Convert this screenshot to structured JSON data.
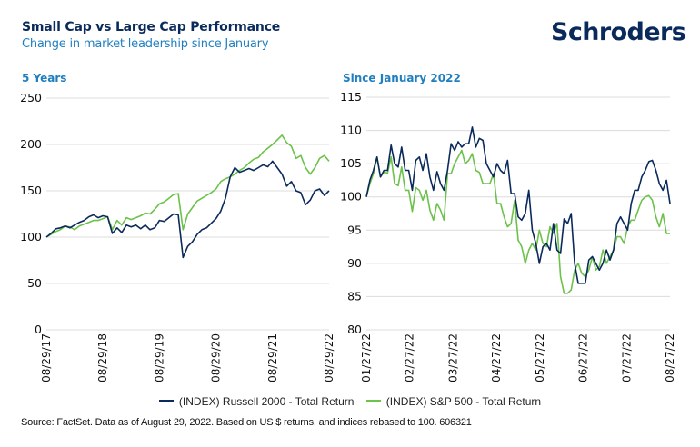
{
  "header": {
    "title": "Small Cap vs Large Cap Performance",
    "subtitle": "Change in market leadership since January",
    "logo": "Schroders"
  },
  "colors": {
    "russell": "#0b2a5c",
    "sp500": "#6cc24a",
    "title": "#0b2a5c",
    "accent": "#1f7fc0"
  },
  "legend": [
    {
      "label": "(INDEX) Russell 2000 - Total Return",
      "color": "#0b2a5c"
    },
    {
      "label": "(INDEX) S&P 500 - Total Return",
      "color": "#6cc24a"
    }
  ],
  "source": "Source: FactSet. Data as of August 29, 2022. Based on US $ returns, and indices rebased to 100. 606321",
  "chart_data": [
    {
      "type": "line",
      "title": "5 Years",
      "xlabel": "",
      "ylabel": "",
      "ylim": [
        0,
        250
      ],
      "yticks": [
        0,
        50,
        100,
        150,
        200,
        250
      ],
      "xticks": [
        "08/29/17",
        "08/29/18",
        "08/29/19",
        "08/29/20",
        "08/29/21",
        "08/29/22"
      ],
      "grid": true,
      "legend": "bottom",
      "x_range": [
        0,
        60
      ],
      "series": [
        {
          "name": "(INDEX) Russell 2000 - Total Return",
          "values": [
            100,
            104,
            109,
            110,
            112,
            110,
            113,
            116,
            118,
            122,
            124,
            121,
            123,
            122,
            104,
            110,
            105,
            113,
            111,
            113,
            109,
            113,
            108,
            110,
            118,
            117,
            121,
            125,
            124,
            78,
            90,
            95,
            103,
            108,
            110,
            115,
            120,
            128,
            142,
            165,
            175,
            170,
            172,
            174,
            172,
            175,
            178,
            176,
            182,
            175,
            168,
            155,
            160,
            150,
            148,
            135,
            140,
            150,
            152,
            145,
            150
          ]
        },
        {
          "name": "(INDEX) S&P 500 - Total Return",
          "values": [
            100,
            103,
            106,
            108,
            112,
            111,
            108,
            112,
            114,
            116,
            118,
            118,
            120,
            122,
            108,
            118,
            113,
            121,
            119,
            121,
            123,
            126,
            125,
            130,
            136,
            138,
            142,
            146,
            147,
            108,
            125,
            132,
            139,
            142,
            145,
            148,
            152,
            160,
            163,
            165,
            168,
            172,
            175,
            180,
            184,
            186,
            192,
            196,
            200,
            205,
            210,
            202,
            198,
            185,
            188,
            175,
            168,
            175,
            185,
            188,
            182
          ]
        }
      ]
    },
    {
      "type": "line",
      "title": "Since January 2022",
      "xlabel": "",
      "ylabel": "",
      "ylim": [
        80,
        115
      ],
      "yticks": [
        80,
        85,
        90,
        95,
        100,
        105,
        110,
        115
      ],
      "xticks": [
        "01/27/22",
        "02/27/22",
        "03/27/22",
        "04/27/22",
        "05/27/22",
        "06/27/22",
        "07/27/22",
        "08/27/22"
      ],
      "grid": true,
      "legend": "bottom",
      "x_range": [
        0,
        100
      ],
      "series": [
        {
          "name": "(INDEX) Russell 2000 - Total Return",
          "values": [
            100,
            102.5,
            104,
            106,
            103,
            104,
            104,
            107.8,
            105,
            104.5,
            107.5,
            104,
            104,
            101,
            105.5,
            106,
            104,
            106.5,
            103,
            101,
            103.8,
            102,
            101,
            104,
            108,
            107,
            108.3,
            107.5,
            108,
            108,
            110.5,
            107.5,
            108.8,
            108.5,
            105,
            104,
            103,
            105,
            104,
            103.5,
            105.5,
            100.5,
            100.5,
            97,
            96.5,
            97.5,
            101,
            95,
            93,
            90,
            92.5,
            93,
            92,
            96,
            92,
            91.5,
            96.7,
            96,
            97.5,
            90,
            87,
            87,
            87,
            90.5,
            91,
            90,
            89,
            90,
            92,
            90.5,
            92,
            96,
            97,
            96,
            95,
            99,
            101,
            101,
            103,
            104,
            105.3,
            105.5,
            104,
            102,
            101,
            102.5,
            99
          ]
        },
        {
          "name": "(INDEX) S&P 500 - Total Return",
          "values": [
            100,
            102,
            103.5,
            106,
            103,
            103.7,
            103.6,
            106,
            102,
            101.7,
            104.5,
            101,
            101,
            97.8,
            101.4,
            101,
            99.5,
            101,
            98,
            96.5,
            99,
            98,
            96.5,
            103.5,
            103.5,
            105,
            106,
            107,
            105,
            105.5,
            106.5,
            104,
            103.7,
            102,
            102,
            102,
            103.5,
            99,
            99,
            97,
            95.5,
            96,
            99.5,
            93.5,
            92.5,
            90,
            92,
            93,
            92,
            95,
            93,
            92.5,
            95.5,
            94.5,
            96,
            88,
            85.5,
            85.5,
            86,
            89,
            90,
            88.5,
            88,
            89,
            91,
            89,
            89.5,
            92,
            90,
            91,
            92,
            94,
            94,
            93,
            95.5,
            96.5,
            96.5,
            98,
            99.5,
            100,
            100.2,
            99.5,
            97,
            95.5,
            97.5,
            94.5,
            94.5
          ]
        }
      ]
    }
  ]
}
